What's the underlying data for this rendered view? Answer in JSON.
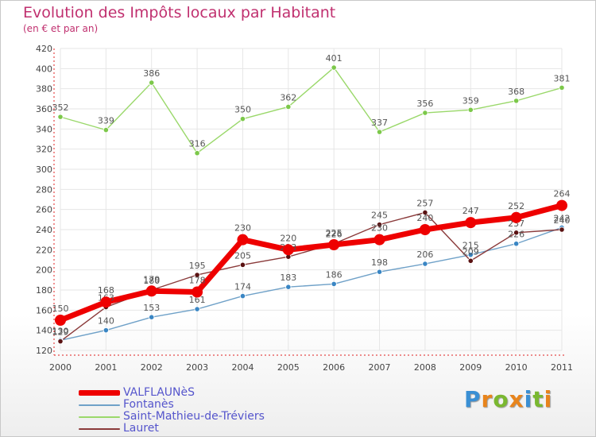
{
  "title": "Evolution des Impôts locaux par Habitant",
  "subtitle": "(en € et par an)",
  "brand": {
    "letters": [
      "P",
      "r",
      "o",
      "x",
      "i",
      "t",
      "i"
    ],
    "colors": [
      "#3a8fd4",
      "#e8841c",
      "#7ab830",
      "#e8841c",
      "#3a8fd4",
      "#7ab830",
      "#e8841c"
    ]
  },
  "chart_data": {
    "type": "line",
    "x": [
      "2000",
      "2001",
      "2002",
      "2003",
      "2004",
      "2005",
      "2006",
      "2007",
      "2008",
      "2009",
      "2010",
      "2011"
    ],
    "ylim": [
      120,
      420
    ],
    "yticks": [
      120,
      140,
      160,
      180,
      200,
      220,
      240,
      260,
      280,
      300,
      320,
      340,
      360,
      380,
      400,
      420
    ],
    "grid": true,
    "legend_position": "bottom-left",
    "series": [
      {
        "name": "VALFLAUNèS",
        "color": "#ee0000",
        "marker": "#ee0000",
        "bold": true,
        "values": [
          150,
          168,
          179,
          178,
          230,
          220,
          225,
          230,
          240,
          247,
          252,
          264
        ]
      },
      {
        "name": "Fontanès",
        "color": "#6fa1c8",
        "marker": "#3a86c4",
        "bold": false,
        "values": [
          130,
          140,
          153,
          161,
          174,
          183,
          186,
          198,
          206,
          215,
          226,
          242
        ]
      },
      {
        "name": "Saint-Mathieu-de-Tréviers",
        "color": "#9ad86a",
        "marker": "#7cc84a",
        "bold": false,
        "values": [
          352,
          339,
          386,
          316,
          350,
          362,
          401,
          337,
          356,
          359,
          368,
          381
        ]
      },
      {
        "name": "Lauret",
        "color": "#8a3a3a",
        "marker": "#5a1212",
        "bold": false,
        "values": [
          129,
          163,
          180,
          195,
          205,
          213,
          226,
          245,
          257,
          209,
          237,
          240
        ]
      }
    ]
  }
}
